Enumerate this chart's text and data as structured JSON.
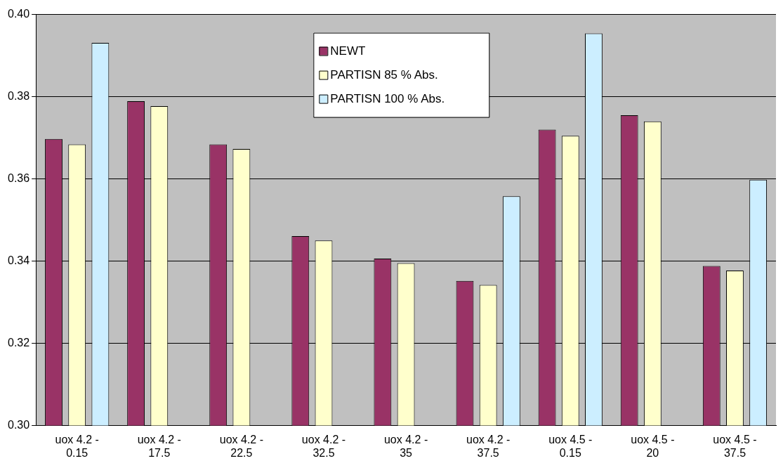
{
  "chart_data": {
    "type": "bar",
    "categories": [
      "uox 4.2 - 0.15",
      "uox 4.2 - 17.5",
      "uox 4.2 - 22.5",
      "uox 4.2 - 32.5",
      "uox 4.2 - 35",
      "uox 4.2 - 37.5",
      "uox 4.5 - 0.15",
      "uox 4.5 - 20",
      "uox 4.5 - 37.5"
    ],
    "series": [
      {
        "name": "NEWT",
        "color": "#993366",
        "values": [
          0.3697,
          0.3789,
          0.3684,
          0.3461,
          0.3406,
          0.3352,
          0.372,
          0.3755,
          0.3388
        ]
      },
      {
        "name": "PARTISN 85 % Abs.",
        "color": "#ffffcc",
        "values": [
          0.3684,
          0.3777,
          0.3673,
          0.345,
          0.3395,
          0.3342,
          0.3705,
          0.374,
          0.3377
        ]
      },
      {
        "name": "PARTISN 100 % Abs.",
        "color": "#cceeff",
        "values": [
          0.3931,
          null,
          null,
          null,
          null,
          0.3558,
          0.3954,
          null,
          0.3598
        ]
      }
    ],
    "ylim": [
      0.3,
      0.4
    ],
    "yticks": [
      {
        "value": 0.3,
        "label": "0.30"
      },
      {
        "value": 0.32,
        "label": "0.32"
      },
      {
        "value": 0.34,
        "label": "0.34"
      },
      {
        "value": 0.36,
        "label": "0.36"
      },
      {
        "value": 0.38,
        "label": "0.38"
      },
      {
        "value": 0.4,
        "label": "0.40"
      }
    ],
    "grid": "y",
    "legend": "top"
  }
}
